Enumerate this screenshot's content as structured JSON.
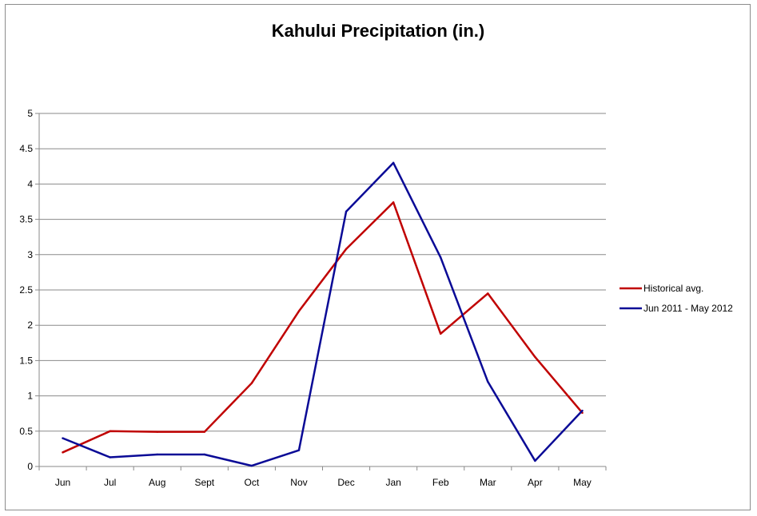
{
  "chart_data": {
    "type": "line",
    "title": "Kahului Precipitation (in.)",
    "xlabel": "",
    "ylabel": "",
    "categories": [
      "Jun",
      "Jul",
      "Aug",
      "Sept",
      "Oct",
      "Nov",
      "Dec",
      "Jan",
      "Feb",
      "Mar",
      "Apr",
      "May"
    ],
    "ylim": [
      0,
      5
    ],
    "yticks": [
      "0",
      "0.5",
      "1",
      "1.5",
      "2",
      "2.5",
      "3",
      "3.5",
      "4",
      "4.5",
      "5"
    ],
    "grid": true,
    "legend_position": "right",
    "series": [
      {
        "name": "Historical avg.",
        "color": "#c00000",
        "values": [
          0.2,
          0.5,
          0.49,
          0.49,
          1.18,
          2.2,
          3.08,
          3.74,
          1.88,
          2.45,
          1.55,
          0.76
        ]
      },
      {
        "name": "Jun 2011 - May 2012",
        "color": "#0a0a96",
        "values": [
          0.4,
          0.13,
          0.17,
          0.17,
          0.01,
          0.23,
          3.61,
          4.3,
          2.96,
          1.2,
          0.08,
          0.79
        ]
      }
    ]
  }
}
